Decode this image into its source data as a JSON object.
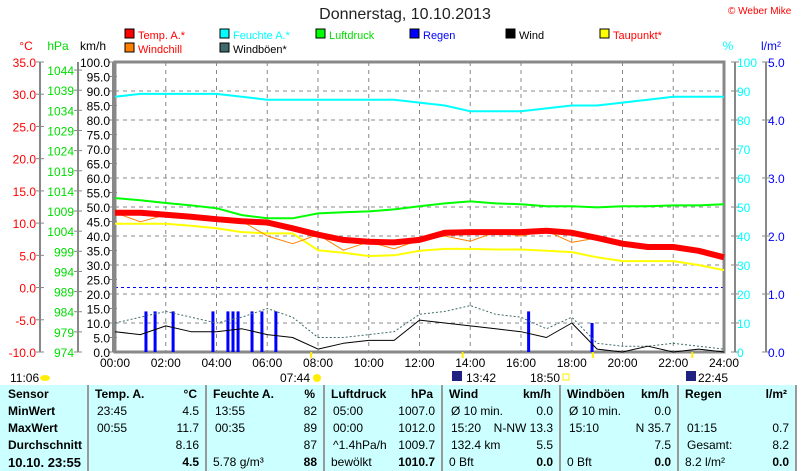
{
  "title": "Donnerstag, 10.10.2013",
  "copyright": "© Weber Mike",
  "chart_data": {
    "type": "line",
    "title": "Donnerstag, 10.10.2013",
    "x_hours": [
      0,
      1,
      2,
      3,
      4,
      5,
      6,
      7,
      8,
      9,
      10,
      11,
      12,
      13,
      14,
      15,
      16,
      17,
      18,
      19,
      20,
      21,
      22,
      23,
      24
    ],
    "x_ticks": [
      "00:00",
      "02:00",
      "04:00",
      "06:00",
      "08:00",
      "10:00",
      "12:00",
      "14:00",
      "16:00",
      "18:00",
      "20:00",
      "22:00",
      "24:00"
    ],
    "axes": {
      "temp": {
        "label": "°C",
        "range": [
          -10,
          35
        ],
        "ticks": [
          "35.0",
          "30.0",
          "25.0",
          "20.0",
          "15.0",
          "10.0",
          "5.0",
          "0.0",
          "-5.0",
          "-10.0"
        ],
        "color": "#ff0000"
      },
      "pressure": {
        "label": "hPa",
        "range": [
          974,
          1046
        ],
        "ticks": [
          "1044",
          "1039",
          "1034",
          "1029",
          "1024",
          "1019",
          "1014",
          "1009",
          "1004",
          "999",
          "994",
          "989",
          "984",
          "979",
          "974"
        ],
        "color": "#00dd00"
      },
      "wind": {
        "label": "km/h",
        "range": [
          0,
          100
        ],
        "ticks": [
          "100.0",
          "95.0",
          "90.0",
          "85.0",
          "80.0",
          "75.0",
          "70.0",
          "65.0",
          "60.0",
          "55.0",
          "50.0",
          "45.0",
          "40.0",
          "35.0",
          "30.0",
          "25.0",
          "20.0",
          "15.0",
          "10.0",
          "5.0",
          "0.0"
        ],
        "color": "#000000"
      },
      "humidity": {
        "label": "%",
        "range": [
          0,
          100
        ],
        "ticks": [
          "100",
          "90",
          "80",
          "70",
          "60",
          "50",
          "40",
          "30",
          "20",
          "10",
          "0"
        ],
        "color": "#00ffff"
      },
      "rain": {
        "label": "l/m²",
        "range": [
          0,
          5
        ],
        "ticks": [
          "5.0",
          "4.0",
          "3.0",
          "2.0",
          "1.0",
          "0.0"
        ],
        "color": "#0000ff"
      }
    },
    "legend": [
      {
        "name": "Temp. A.*",
        "color": "#ff0000",
        "text_color": "#ff0000"
      },
      {
        "name": "Feuchte A.*",
        "color": "#00ffff",
        "text_color": "#00ffff"
      },
      {
        "name": "Luftdruck",
        "color": "#00ff00",
        "text_color": "#00dd00"
      },
      {
        "name": "Regen",
        "color": "#0000ff",
        "text_color": "#0000ff"
      },
      {
        "name": "Wind",
        "color": "#000000",
        "text_color": "#000000"
      },
      {
        "name": "Taupunkt*",
        "color": "#ffff00",
        "text_color": "#ff0000"
      },
      {
        "name": "Windchill",
        "color": "#ff8000",
        "text_color": "#ff0000"
      },
      {
        "name": "Windböen*",
        "color": "#406a6a",
        "text_color": "#000000"
      }
    ],
    "series": [
      {
        "name": "Temp. A.*",
        "axis": "temp",
        "color": "#ff0000",
        "width": 6,
        "values": [
          11.6,
          11.6,
          11.3,
          11.0,
          10.6,
          10.3,
          10.1,
          9.2,
          8.2,
          7.4,
          7.1,
          7.0,
          7.4,
          8.5,
          8.6,
          8.6,
          8.6,
          8.8,
          8.5,
          7.7,
          6.8,
          6.3,
          6.3,
          5.7,
          4.7
        ]
      },
      {
        "name": "Feuchte A.*",
        "axis": "humidity",
        "color": "#00ffff",
        "width": 2,
        "values": [
          88,
          89,
          89,
          89,
          89,
          88,
          87,
          87,
          87,
          87,
          87,
          87,
          86,
          85,
          83,
          83,
          83,
          84,
          85,
          85,
          86,
          87,
          88,
          88,
          88
        ]
      },
      {
        "name": "Luftdruck",
        "axis": "pressure",
        "color": "#00ff00",
        "width": 2,
        "values": [
          1012.2,
          1011.7,
          1011.0,
          1010.4,
          1009.7,
          1008.0,
          1007.2,
          1007.2,
          1008.4,
          1008.7,
          1008.9,
          1009.4,
          1010.2,
          1010.9,
          1011.4,
          1010.9,
          1010.7,
          1010.2,
          1010.2,
          1009.9,
          1010.2,
          1010.2,
          1010.4,
          1010.4,
          1010.7
        ]
      },
      {
        "name": "Taupunkt*",
        "axis": "temp",
        "color": "#ffff00",
        "width": 2,
        "values": [
          9.9,
          9.9,
          9.9,
          9.6,
          9.2,
          8.6,
          8.4,
          8.4,
          5.8,
          5.4,
          4.9,
          5.0,
          5.7,
          6.0,
          6.0,
          5.9,
          5.9,
          5.7,
          5.5,
          4.7,
          4.1,
          4.1,
          4.1,
          3.5,
          2.7
        ]
      },
      {
        "name": "Windchill",
        "axis": "temp",
        "color": "#ff8000",
        "width": 1,
        "values": [
          11.6,
          10.2,
          11.3,
          11.0,
          10.6,
          10.3,
          8.0,
          6.8,
          8.2,
          5.8,
          7.1,
          6.0,
          7.4,
          8.0,
          7.2,
          8.6,
          8.0,
          8.8,
          7.0,
          7.7,
          6.8,
          6.3,
          6.3,
          5.7,
          4.7
        ]
      },
      {
        "name": "Windböen*",
        "axis": "wind",
        "color": "#406a6a",
        "width": 1,
        "dashed": true,
        "values": [
          10,
          12,
          14,
          12,
          10,
          12,
          15,
          12,
          5,
          5,
          6,
          7,
          13,
          14,
          16,
          13,
          12,
          8,
          12,
          3,
          2,
          2,
          3,
          2,
          1
        ]
      },
      {
        "name": "Wind",
        "axis": "wind",
        "color": "#000000",
        "width": 1,
        "values": [
          7,
          6,
          9,
          7,
          7,
          8,
          6,
          5,
          1,
          3,
          4,
          4,
          11,
          10,
          9,
          8,
          7,
          5,
          10,
          1,
          0,
          2,
          0,
          1,
          0
        ]
      }
    ],
    "rain_bars": {
      "axis": "rain",
      "hours": [
        1.22,
        1.58,
        2.29,
        3.86,
        4.45,
        4.65,
        4.85,
        5.4,
        5.79,
        6.34,
        16.3,
        18.8
      ],
      "values": [
        0.7,
        0.7,
        0.7,
        0.7,
        0.7,
        0.7,
        0.7,
        0.7,
        0.7,
        0.7,
        0.7,
        0.5
      ]
    },
    "reference_lines": [
      {
        "axis": "temp",
        "value": 0,
        "color": "#0000ff"
      }
    ],
    "events": [
      {
        "label": "11:06",
        "kind": "moonset",
        "icon": "moon-icon"
      },
      {
        "label": "07:44",
        "kind": "sunrise",
        "icon": "sun-icon",
        "hour": 7.73
      },
      {
        "label": "13:42",
        "kind": "moonrise",
        "icon": "moonrise-icon",
        "hour": 13.7
      },
      {
        "label": "18:50",
        "kind": "sunset",
        "icon": "sunset-icon",
        "hour": 18.83
      },
      {
        "label": "22:45",
        "kind": "moon",
        "icon": "moon-phase-icon",
        "hour": 22.75
      }
    ]
  },
  "table": {
    "row_labels": [
      "Sensor",
      "MinWert",
      "MaxWert",
      "Durchschnitt",
      "10.10. 23:55"
    ],
    "columns": [
      {
        "header": "Temp. A.",
        "unit": "°C",
        "rows": [
          [
            "23:45",
            "4.5"
          ],
          [
            "00:55",
            "11.7"
          ],
          [
            "",
            "8.16"
          ],
          [
            "",
            "4.5"
          ]
        ]
      },
      {
        "header": "Feuchte A.",
        "unit": "%",
        "rows": [
          [
            "13:55",
            "82"
          ],
          [
            "00:35",
            "89"
          ],
          [
            "",
            "87"
          ],
          [
            "5.78 g/m³",
            "88"
          ]
        ]
      },
      {
        "header": "Luftdruck",
        "unit": "hPa",
        "rows": [
          [
            "05:00",
            "1007.0"
          ],
          [
            "00:00",
            "1012.0"
          ],
          [
            "^1.4hPa/h",
            "1009.7"
          ],
          [
            "bewölkt",
            "1010.7"
          ]
        ]
      },
      {
        "header": "Wind",
        "unit": "km/h",
        "rows": [
          [
            "Ø 10 min.",
            "0.0"
          ],
          [
            "15:20",
            "N-NW 13.3"
          ],
          [
            "132.4 km",
            "5.5"
          ],
          [
            "0 Bft",
            "0.0"
          ]
        ]
      },
      {
        "header": "Windböen",
        "unit": "km/h",
        "rows": [
          [
            "Ø 10 min.",
            "0.0"
          ],
          [
            "15:10",
            "N 35.7"
          ],
          [
            "",
            "7.5"
          ],
          [
            "0 Bft",
            "0.0"
          ]
        ]
      },
      {
        "header": "Regen",
        "unit": "l/m²",
        "rows": [
          [
            "",
            ""
          ],
          [
            "01:15",
            "0.7"
          ],
          [
            "Gesamt:",
            "8.2"
          ],
          [
            "8.2 l/m²",
            "0.0"
          ]
        ]
      }
    ]
  }
}
